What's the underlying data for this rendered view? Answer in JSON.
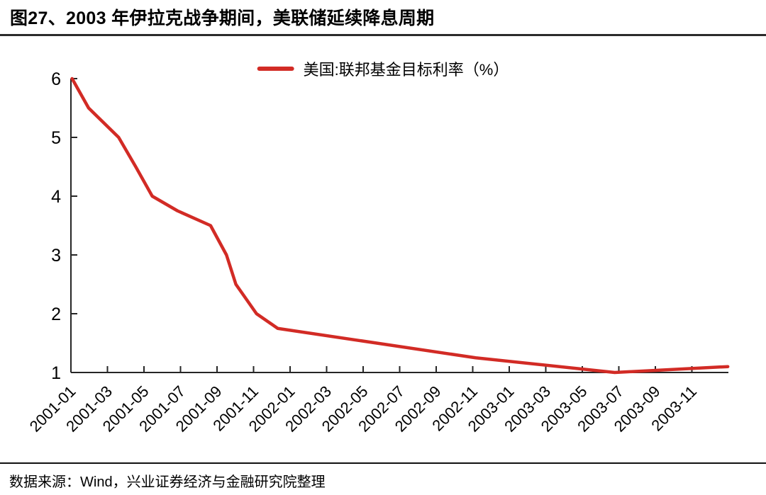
{
  "header": {
    "title": "图27、2003 年伊拉克战争期间，美联储延续降息周期"
  },
  "footer": {
    "source": "数据来源：Wind，兴业证券经济与金融研究院整理"
  },
  "colors": {
    "series_red": "#d22b25",
    "axis": "#262626",
    "rule_dark": "#2b2b2b"
  },
  "chart_data": {
    "type": "line",
    "title": "",
    "grid": false,
    "legend": {
      "position": "top-center",
      "entries": [
        "美国:联邦基金目标利率（%）"
      ]
    },
    "x_axis": {
      "start": "2001-01",
      "end": "2004-01",
      "tick_interval_months": 2,
      "label_rotation_deg": -45,
      "tick_labels": [
        "2001-01",
        "2001-03",
        "2001-05",
        "2001-07",
        "2001-09",
        "2001-11",
        "2002-01",
        "2002-03",
        "2002-05",
        "2002-07",
        "2002-09",
        "2002-11",
        "2003-01",
        "2003-03",
        "2003-05",
        "2003-07",
        "2003-09",
        "2003-11"
      ]
    },
    "y_axis": {
      "min": 1,
      "max": 6,
      "ticks": [
        1,
        2,
        3,
        4,
        5,
        6
      ]
    },
    "series": [
      {
        "name": "美国:联邦基金目标利率（%）",
        "color": "#d22b25",
        "points": [
          [
            "2001-01-03",
            6.0
          ],
          [
            "2001-01-31",
            5.5
          ],
          [
            "2001-03-20",
            5.0
          ],
          [
            "2001-04-18",
            4.5
          ],
          [
            "2001-05-15",
            4.0
          ],
          [
            "2001-06-27",
            3.75
          ],
          [
            "2001-08-21",
            3.5
          ],
          [
            "2001-09-17",
            3.0
          ],
          [
            "2001-10-02",
            2.5
          ],
          [
            "2001-11-06",
            2.0
          ],
          [
            "2001-12-11",
            1.75
          ],
          [
            "2002-11-06",
            1.25
          ],
          [
            "2003-06-25",
            1.0
          ],
          [
            "2003-12-31",
            1.1
          ]
        ]
      }
    ]
  }
}
